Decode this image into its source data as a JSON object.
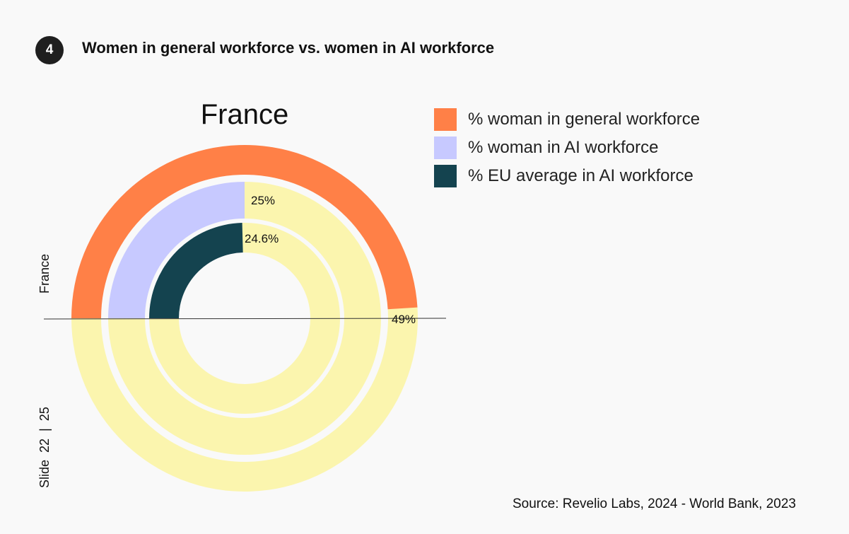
{
  "header": {
    "badge": "4",
    "title": "Women in general workforce vs. women in AI workforce"
  },
  "side_label": "France",
  "slide_counter": "Slide  22  |  25",
  "source": "Source: Revelio Labs, 2024 - World Bank, 2023",
  "chart_data": {
    "type": "pie",
    "subtype": "nested-donut",
    "title": "France",
    "start": "9 o'clock, clockwise",
    "remainder_color": "#fbf5ae",
    "series": [
      {
        "name": "% woman in general workforce",
        "value": 49,
        "label": "49%",
        "color": "#ff8047"
      },
      {
        "name": "% woman in AI workforce",
        "value": 25,
        "label": "25%",
        "color": "#c7c9ff"
      },
      {
        "name": "% EU average in AI workforce",
        "value": 24.6,
        "label": "24.6%",
        "color": "#14434f"
      }
    ],
    "legend_position": "top-right"
  }
}
